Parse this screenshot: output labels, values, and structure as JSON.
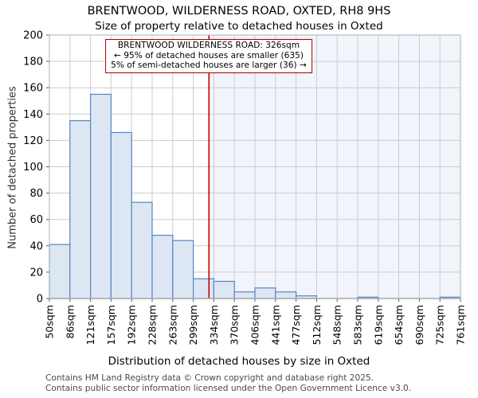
{
  "footer": {
    "line1": "Contains HM Land Registry data © Crown copyright and database right 2025.",
    "line2": "Contains public sector information licensed under the Open Government Licence v3.0."
  },
  "chart_data": {
    "type": "bar",
    "title": "BRENTWOOD, WILDERNESS ROAD, OXTED, RH8 9HS",
    "subtitle": "Size of property relative to detached houses in Oxted",
    "xlabel": "Distribution of detached houses by size in Oxted",
    "ylabel": "Number of detached properties",
    "x_tick_labels": [
      "50sqm",
      "86sqm",
      "121sqm",
      "157sqm",
      "192sqm",
      "228sqm",
      "263sqm",
      "299sqm",
      "334sqm",
      "370sqm",
      "406sqm",
      "441sqm",
      "477sqm",
      "512sqm",
      "548sqm",
      "583sqm",
      "619sqm",
      "654sqm",
      "690sqm",
      "725sqm",
      "761sqm"
    ],
    "bin_starts_sqm": [
      50,
      86,
      121,
      157,
      192,
      228,
      263,
      299,
      334,
      370,
      406,
      441,
      477,
      512,
      548,
      583,
      619,
      654,
      690,
      725
    ],
    "values": [
      41,
      135,
      155,
      126,
      73,
      48,
      44,
      15,
      13,
      5,
      8,
      5,
      2,
      0,
      0,
      1,
      0,
      0,
      0,
      1
    ],
    "x_min": 50,
    "x_max": 761,
    "ylim": [
      0,
      200
    ],
    "ytick_step": 20,
    "grid": true,
    "marker": {
      "value_sqm": 326,
      "label": "326sqm"
    },
    "annotation": {
      "line1": "BRENTWOOD WILDERNESS ROAD: 326sqm",
      "line2": "← 95% of detached houses are smaller (635)",
      "line3": "5% of semi-detached houses are larger (36) →"
    },
    "colors": {
      "bar_fill": "#dde7f3",
      "bar_edge": "#5585c5",
      "grid": "#cccccc",
      "plot_border": "#b0b0b8",
      "axis_line": "#aaaaaa",
      "shade_right_of_marker": "#f1f4fb",
      "marker_line": "#c00000",
      "annotation_border": "#a00000",
      "tick_text": "#000000",
      "footer_text": "#4a4a4a"
    }
  }
}
